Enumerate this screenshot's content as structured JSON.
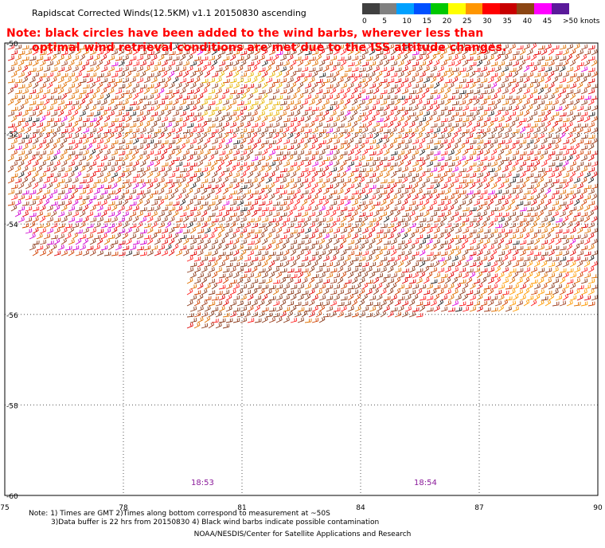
{
  "title": "Rapidscat Corrected Winds(12.5KM) v1.1 20150830 ascending",
  "note_lines": [
    "Note: black circles have been added to the wind barbs, wherever less than",
    "optimal wind retrieval conditions are met due to the ISS attitude changes."
  ],
  "legend": {
    "labels": [
      "0",
      "5",
      "10",
      "15",
      "20",
      "25",
      "30",
      "35",
      "40",
      "45",
      ">50 knots"
    ],
    "colors": [
      "#404040",
      "#808080",
      "#00a0ff",
      "#0050ff",
      "#00c800",
      "#ffff00",
      "#ff9600",
      "#ff0000",
      "#c80000",
      "#8b4513",
      "#ff00ff",
      "#5a1a9a"
    ]
  },
  "map": {
    "lon_labels": [
      "75",
      "78",
      "81",
      "84",
      "87",
      "90"
    ],
    "lat_labels": [
      "-50",
      "-52",
      "-54",
      "-56",
      "-58",
      "-60"
    ],
    "time_labels": [
      "18:53",
      "18:54"
    ],
    "barb_palette": [
      "#e00000",
      "#ff2020",
      "#d04000",
      "#a04020",
      "#8b3a1a",
      "#e07000",
      "#ff9a00",
      "#c8a000",
      "#e000e0",
      "#202020"
    ]
  },
  "bottom_notes": [
    "Note: 1) Times are GMT 2)Times along bottom correspond to measurement at ~50S",
    "3)Data buffer is 22 hrs from 20150830 4) Black wind barbs indicate possible contamination"
  ],
  "credit": "NOAA/NESDIS/Center for Satellite Applications and Research"
}
